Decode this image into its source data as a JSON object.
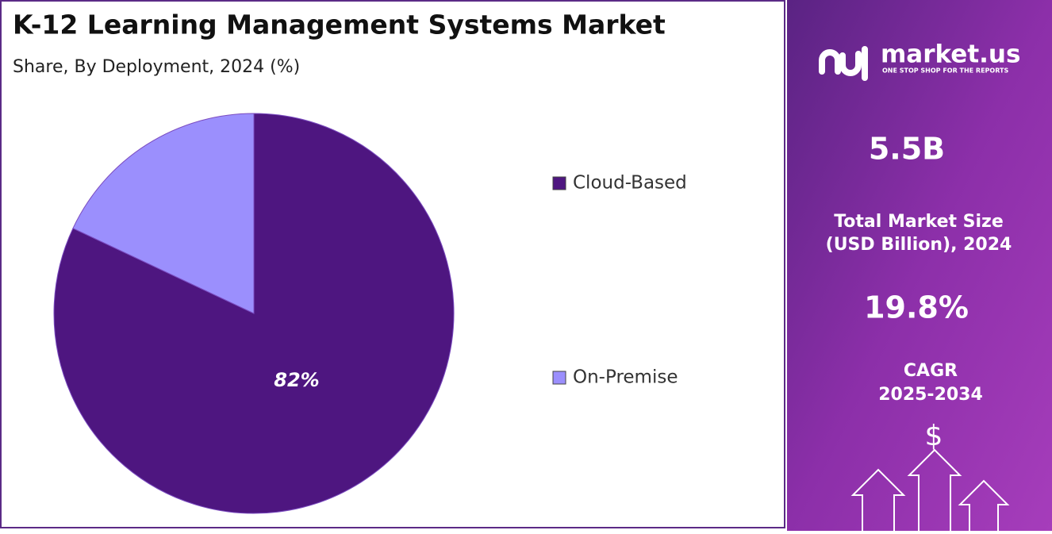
{
  "chart_data": {
    "type": "pie",
    "title": "K-12 Learning Management Systems Market",
    "subtitle": "Share, By Deployment, 2024 (%)",
    "categories": [
      "Cloud-Based",
      "On-Premise"
    ],
    "values": [
      82,
      18
    ],
    "value_labels": [
      "82%",
      null
    ],
    "colors": [
      "#4e1680",
      "#9b8ffd"
    ],
    "legend": "right"
  },
  "side_panel": {
    "brand": "market.us",
    "tagline": "ONE STOP SHOP FOR THE REPORTS",
    "market_size": "5.5B",
    "market_size_label": [
      "Total Market Size",
      "(USD Billion), 2024"
    ],
    "cagr": "19.8%",
    "cagr_label": [
      "CAGR",
      "2025-2034"
    ],
    "icon": "$"
  }
}
